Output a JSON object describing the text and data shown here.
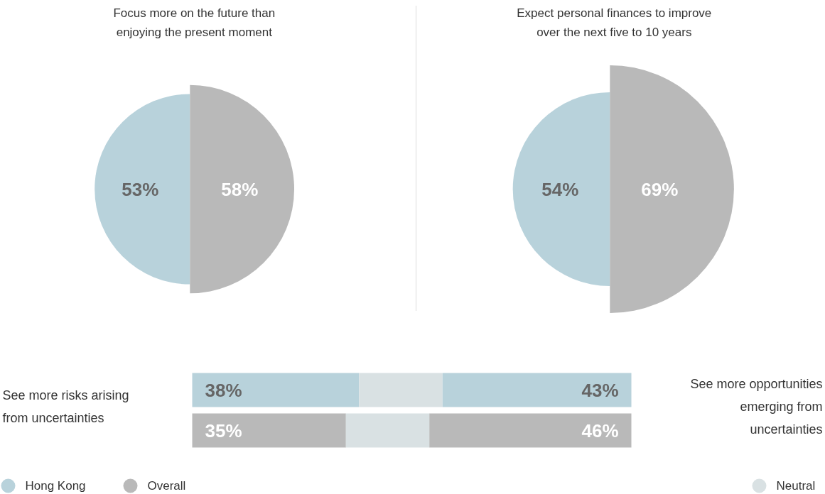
{
  "chart_data": [
    {
      "type": "other",
      "title": "Focus more on the future than enjoying the present moment",
      "categories": [
        null,
        null
      ],
      "values": [
        53,
        58
      ],
      "colors": [
        "#b8d2db",
        "#b9b9b9"
      ],
      "value_labels": [
        "53%",
        "58%"
      ]
    },
    {
      "type": "other",
      "title": "Expect personal finances to improve over the next five to 10 years",
      "categories": [
        null,
        null
      ],
      "values": [
        54,
        69
      ],
      "colors": [
        "#b8d2db",
        "#b9b9b9"
      ],
      "value_labels": [
        "54%",
        "69%"
      ]
    },
    {
      "type": "bar",
      "orientation": "horizontal",
      "stacked": true,
      "xlim": [
        0,
        100
      ],
      "categories": [
        null,
        null
      ],
      "legend": "bottom",
      "annotations": [
        "See more risks arising from uncertainties",
        "See more opportunities emerging from uncertainties"
      ],
      "series": [
        {
          "name": "Hong Kong",
          "color": "#b8d2db",
          "values": [
            38,
            null
          ],
          "value_labels": [
            "38%",
            null
          ]
        },
        {
          "name": "Overall",
          "color": "#b9b9b9",
          "values": [
            null,
            35
          ],
          "value_labels": [
            null,
            "35%"
          ]
        },
        {
          "name": "Neutral",
          "color": "#d9e1e3",
          "values": [
            19,
            19
          ],
          "value_labels": [
            null,
            null
          ]
        },
        {
          "color": "#b8d2db",
          "values": [
            43,
            null
          ],
          "value_labels": [
            "43%",
            null
          ]
        },
        {
          "color": "#b9b9b9",
          "values": [
            null,
            46
          ],
          "value_labels": [
            null,
            "46%"
          ]
        }
      ]
    }
  ]
}
